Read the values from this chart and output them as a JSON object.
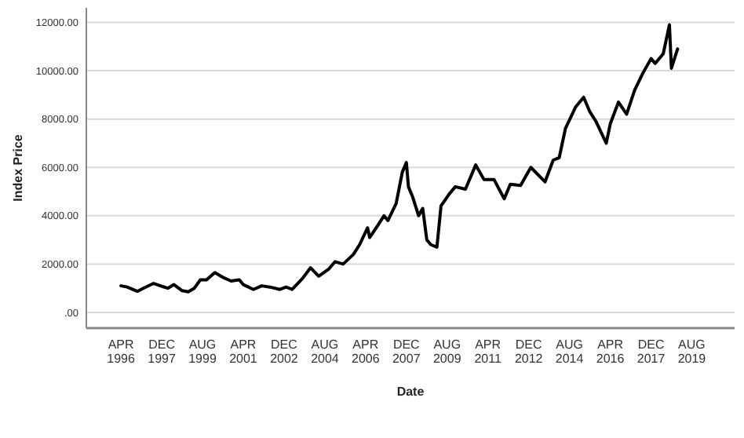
{
  "chart_data": {
    "type": "line",
    "xlabel": "Date",
    "ylabel": "Index Price",
    "x": [
      "1996-04",
      "1996-07",
      "1996-12",
      "1997-03",
      "1997-08",
      "1997-12",
      "1998-03",
      "1998-06",
      "1998-10",
      "1999-01",
      "1999-04",
      "1999-07",
      "1999-10",
      "2000-02",
      "2000-06",
      "2000-10",
      "2001-02",
      "2001-04",
      "2001-09",
      "2002-01",
      "2002-05",
      "2002-10",
      "2003-01",
      "2003-04",
      "2003-09",
      "2004-01",
      "2004-05",
      "2004-10",
      "2005-01",
      "2005-05",
      "2005-10",
      "2006-01",
      "2006-05",
      "2006-06",
      "2006-10",
      "2007-01",
      "2007-03",
      "2007-07",
      "2007-10",
      "2007-12",
      "2008-01",
      "2008-03",
      "2008-06",
      "2008-08",
      "2008-10",
      "2008-12",
      "2009-03",
      "2009-05",
      "2009-09",
      "2009-12",
      "2010-05",
      "2010-10",
      "2011-02",
      "2011-07",
      "2011-12",
      "2012-03",
      "2012-08",
      "2013-01",
      "2013-08",
      "2013-12",
      "2014-03",
      "2014-06",
      "2014-11",
      "2015-03",
      "2015-06",
      "2015-09",
      "2016-02",
      "2016-04",
      "2016-08",
      "2016-12",
      "2017-04",
      "2017-08",
      "2017-12",
      "2018-02",
      "2018-06",
      "2018-09",
      "2018-10",
      "2019-01"
    ],
    "series": [
      {
        "color": "#000000",
        "values": [
          1100,
          1050,
          870,
          1000,
          1200,
          1080,
          1000,
          1150,
          900,
          850,
          1000,
          1350,
          1350,
          1650,
          1450,
          1300,
          1350,
          1150,
          950,
          1100,
          1050,
          950,
          1050,
          950,
          1400,
          1850,
          1500,
          1800,
          2100,
          2000,
          2400,
          2800,
          3500,
          3100,
          3600,
          4000,
          3800,
          4500,
          5800,
          6200,
          5200,
          4800,
          4000,
          4300,
          3000,
          2800,
          2700,
          4400,
          4900,
          5200,
          5100,
          6100,
          5500,
          5500,
          4700,
          5300,
          5250,
          6000,
          5400,
          6300,
          6400,
          7600,
          8500,
          8900,
          8300,
          7900,
          7000,
          7800,
          8700,
          8200,
          9200,
          9900,
          10500,
          10300,
          10700,
          11900,
          10100,
          10900
        ]
      }
    ],
    "xlim": [
      "1994-11",
      "2021-05"
    ],
    "xticks": [
      {
        "value": "1996-04",
        "label": "APR 1996"
      },
      {
        "value": "1997-12",
        "label": "DEC 1997"
      },
      {
        "value": "1999-08",
        "label": "AUG 1999"
      },
      {
        "value": "2001-04",
        "label": "APR 2001"
      },
      {
        "value": "2002-12",
        "label": "DEC 2002"
      },
      {
        "value": "2004-08",
        "label": "AUG 2004"
      },
      {
        "value": "2006-04",
        "label": "APR 2006"
      },
      {
        "value": "2007-12",
        "label": "DEC 2007"
      },
      {
        "value": "2009-08",
        "label": "AUG 2009"
      },
      {
        "value": "2011-04",
        "label": "APR 2011"
      },
      {
        "value": "2012-12",
        "label": "DEC 2012"
      },
      {
        "value": "2014-08",
        "label": "AUG 2014"
      },
      {
        "value": "2016-04",
        "label": "APR 2016"
      },
      {
        "value": "2017-12",
        "label": "DEC 2017"
      },
      {
        "value": "2019-08",
        "label": "AUG 2019"
      }
    ],
    "ylim": [
      -650,
      12600
    ],
    "yticks": [
      {
        "value": 0,
        "label": ".00"
      },
      {
        "value": 2000,
        "label": "2000.00"
      },
      {
        "value": 4000,
        "label": "4000.00"
      },
      {
        "value": 6000,
        "label": "6000.00"
      },
      {
        "value": 8000,
        "label": "8000.00"
      },
      {
        "value": 10000,
        "label": "10000.00"
      },
      {
        "value": 12000,
        "label": "12000.00"
      }
    ],
    "grid": "y",
    "marker": "none",
    "line_style": "solid"
  }
}
